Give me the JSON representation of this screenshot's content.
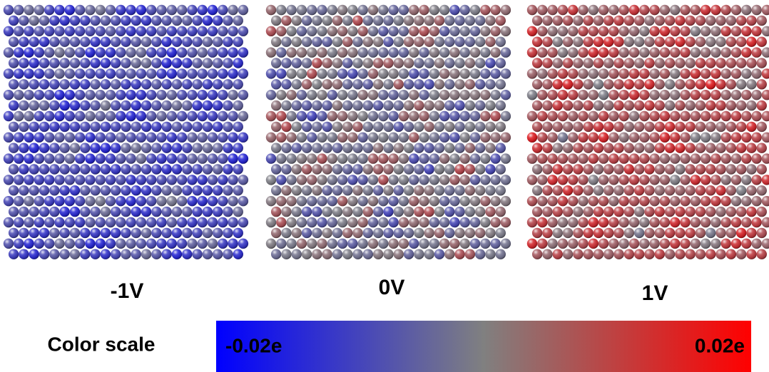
{
  "panels": [
    {
      "label": "-1V"
    },
    {
      "label": "0V"
    },
    {
      "label": "1V"
    }
  ],
  "color_scale": {
    "title": "Color scale",
    "min_label": "-0.02e",
    "max_label": "0.02e"
  }
}
